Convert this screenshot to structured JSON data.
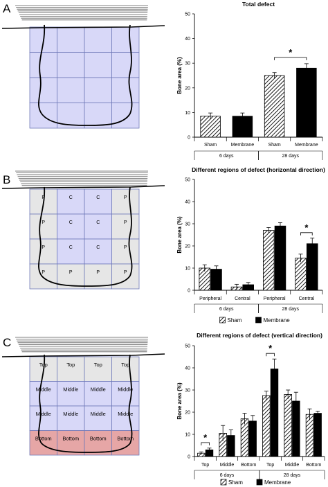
{
  "panel_labels": [
    "A",
    "B",
    "C"
  ],
  "colors": {
    "defect_blue": "#d8d8f8",
    "peripheral_gray": "#e6e6e6",
    "bottom_red": "#e6a6a6",
    "grid_line": "#6f79b8",
    "bar_black": "#000000"
  },
  "diagrams": {
    "A": {
      "rows": [
        [
          "",
          "",
          "",
          ""
        ],
        [
          "",
          "",
          "",
          ""
        ],
        [
          "",
          "",
          "",
          ""
        ],
        [
          "",
          "",
          "",
          ""
        ]
      ]
    },
    "B": {
      "rows": [
        [
          "P",
          "C",
          "C",
          "P"
        ],
        [
          "P",
          "C",
          "C",
          "P"
        ],
        [
          "P",
          "C",
          "C",
          "P"
        ],
        [
          "P",
          "P",
          "P",
          "P"
        ]
      ]
    },
    "C": {
      "rows": [
        [
          "Top",
          "Top",
          "Top",
          "Top"
        ],
        [
          "Middle",
          "Middle",
          "Middle",
          "Middle"
        ],
        [
          "Middle",
          "Middle",
          "Middle",
          "Middle"
        ],
        [
          "Bottom",
          "Bottom",
          "Bottom",
          "Bottom"
        ]
      ]
    }
  },
  "chart_data": [
    {
      "type": "bar",
      "title": "Total defect",
      "ylabel": "Bone area (%)",
      "ylim": [
        0,
        50
      ],
      "yticks": [
        0,
        10,
        20,
        30,
        40,
        50
      ],
      "categories": [
        "Sham",
        "Membrane",
        "Sham",
        "Membrane"
      ],
      "groups": [
        {
          "label": "6 days",
          "span": [
            0,
            1
          ]
        },
        {
          "label": "28 days",
          "span": [
            2,
            3
          ]
        }
      ],
      "bar_styles": [
        "hatched",
        "solid",
        "hatched",
        "solid"
      ],
      "values": [
        8.5,
        8.5,
        25,
        28
      ],
      "errors": [
        1.3,
        1.3,
        1.2,
        1.8
      ],
      "annotations": [
        {
          "text": "*",
          "between": [
            2,
            3
          ]
        }
      ],
      "legend": null
    },
    {
      "type": "bar",
      "title": "Different regions of defect (horizontal direction)",
      "ylabel": "Bone area (%)",
      "ylim": [
        0,
        50
      ],
      "yticks": [
        0,
        10,
        20,
        30,
        40,
        50
      ],
      "categories": [
        "Peripheral",
        "Central",
        "Peripheral",
        "Central"
      ],
      "groups": [
        {
          "label": "6 days",
          "span": [
            0,
            1
          ]
        },
        {
          "label": "28 days",
          "span": [
            2,
            3
          ]
        }
      ],
      "series": [
        {
          "name": "Sham",
          "style": "hatched",
          "values": [
            10,
            1.5,
            27,
            14.5
          ],
          "errors": [
            1.5,
            1.2,
            1.3,
            1.8
          ]
        },
        {
          "name": "Membrane",
          "style": "solid",
          "values": [
            9.5,
            2.5,
            29,
            21
          ],
          "errors": [
            1.5,
            1,
            1.5,
            2.5
          ]
        }
      ],
      "annotations": [
        {
          "text": "*",
          "category": 3
        }
      ],
      "legend": "bottom"
    },
    {
      "type": "bar",
      "title": "Different regions of defect (vertical direction)",
      "ylabel": "Bone area (%)",
      "ylim": [
        0,
        50
      ],
      "yticks": [
        0,
        10,
        20,
        30,
        40,
        50
      ],
      "categories": [
        "Top",
        "Middle",
        "Bottom",
        "Top",
        "Middle",
        "Bottom"
      ],
      "groups": [
        {
          "label": "6 days",
          "span": [
            0,
            2
          ]
        },
        {
          "label": "28 days",
          "span": [
            3,
            5
          ]
        }
      ],
      "series": [
        {
          "name": "Sham",
          "style": "hatched",
          "values": [
            1.5,
            10.5,
            17,
            27.5,
            28,
            19
          ],
          "errors": [
            0.6,
            3.5,
            2.5,
            2,
            2,
            2.5
          ]
        },
        {
          "name": "Membrane",
          "style": "solid",
          "values": [
            3,
            9.5,
            16,
            39.5,
            25,
            19.5
          ],
          "errors": [
            0.8,
            2.5,
            2.5,
            4.5,
            4,
            1
          ]
        }
      ],
      "annotations": [
        {
          "text": "*",
          "category": 0
        },
        {
          "text": "*",
          "category": 3
        }
      ],
      "legend": "bottom"
    }
  ]
}
